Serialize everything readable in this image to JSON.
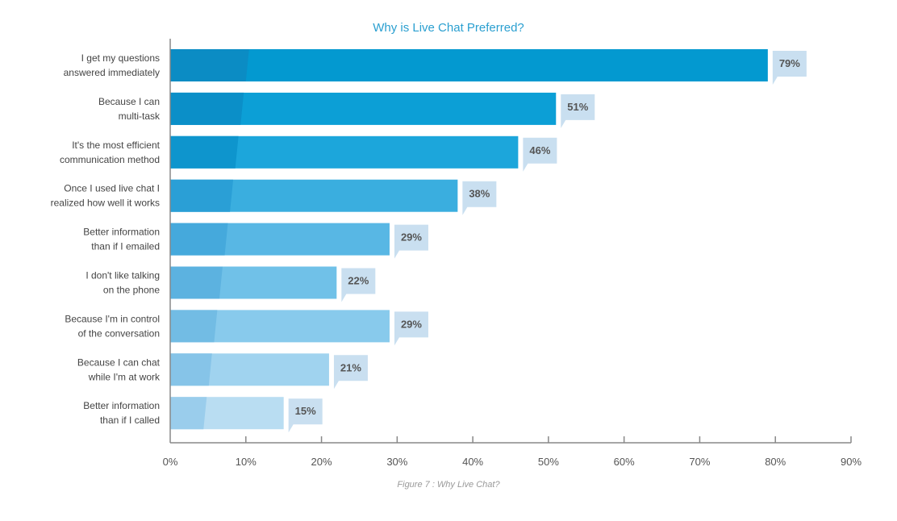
{
  "chart_data": {
    "type": "bar",
    "orientation": "horizontal",
    "title": "Why is Live Chat Preferred?",
    "caption": "Figure 7 : Why Live Chat?",
    "categories": [
      [
        "I get my questions",
        "answered immediately"
      ],
      [
        "Because I can",
        "multi-task"
      ],
      [
        "It's the most efficient",
        "communication method"
      ],
      [
        "Once I used live chat I",
        "realized how well it works"
      ],
      [
        "Better information",
        "than if I emailed"
      ],
      [
        "I don't like talking",
        "on the phone"
      ],
      [
        "Because I'm in control",
        "of the conversation"
      ],
      [
        "Because I can chat",
        "while I'm at work"
      ],
      [
        "Better information",
        "than if I called"
      ]
    ],
    "values": [
      79,
      51,
      46,
      38,
      29,
      22,
      29,
      21,
      15
    ],
    "value_labels": [
      "79%",
      "51%",
      "46%",
      "38%",
      "29%",
      "22%",
      "29%",
      "21%",
      "15%"
    ],
    "xlim": [
      0,
      90
    ],
    "xticks": [
      "0%",
      "10%",
      "20%",
      "30%",
      "40%",
      "50%",
      "60%",
      "70%",
      "80%",
      "90%"
    ],
    "colors": [
      "#0399d0",
      "#0c9fd6",
      "#1ca6db",
      "#3aaedf",
      "#58b7e4",
      "#70c1e8",
      "#88caec",
      "#a0d3ef",
      "#b9ddf2"
    ],
    "accent_colors": [
      "#0b8cc4",
      "#0b8fc8",
      "#0e95cd",
      "#2a9fd6",
      "#45a9dc",
      "#5cb2e0",
      "#72bce4",
      "#86c4e8",
      "#9acdec"
    ],
    "callout_color": "#c9dff0",
    "title_color": "#2a9fd0"
  }
}
